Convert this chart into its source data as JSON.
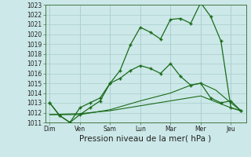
{
  "xlabel": "Pression niveau de la mer( hPa )",
  "days": [
    "Dim",
    "Ven",
    "Sam",
    "Lun",
    "Mar",
    "Mer",
    "Jeu"
  ],
  "day_x": [
    0,
    1,
    2,
    3,
    4,
    5,
    6
  ],
  "line1_x": [
    0,
    0.33,
    0.67,
    1.0,
    1.33,
    1.67,
    2.0,
    2.33,
    2.67,
    3.0,
    3.33,
    3.67,
    4.0,
    4.33,
    4.67,
    5.0,
    5.33,
    5.67,
    6.0,
    6.33
  ],
  "line1_y": [
    1013.0,
    1011.7,
    1011.0,
    1011.8,
    1012.5,
    1013.2,
    1015.0,
    1016.3,
    1018.9,
    1020.7,
    1020.2,
    1019.5,
    1021.5,
    1021.6,
    1021.1,
    1023.2,
    1021.8,
    1019.3,
    1012.5,
    1012.2
  ],
  "line2_x": [
    0,
    0.33,
    0.67,
    1.0,
    1.33,
    1.67,
    2.0,
    2.33,
    2.67,
    3.0,
    3.33,
    3.67,
    4.0,
    4.33,
    4.67,
    5.0,
    5.33,
    5.67,
    6.0,
    6.33
  ],
  "line2_y": [
    1013.0,
    1011.7,
    1011.0,
    1012.5,
    1013.0,
    1013.5,
    1015.0,
    1015.5,
    1016.3,
    1016.8,
    1016.5,
    1016.0,
    1017.0,
    1015.7,
    1014.8,
    1015.0,
    1013.5,
    1013.0,
    1013.2,
    1012.2
  ],
  "line3_x": [
    0,
    1.0,
    2.0,
    3.0,
    4.0,
    4.67,
    5.0,
    5.5,
    6.0,
    6.33
  ],
  "line3_y": [
    1011.8,
    1011.8,
    1012.3,
    1013.2,
    1014.0,
    1014.8,
    1015.0,
    1014.3,
    1013.0,
    1012.2
  ],
  "line4_x": [
    0,
    1.0,
    2.0,
    3.0,
    4.0,
    5.0,
    6.0,
    6.33
  ],
  "line4_y": [
    1011.8,
    1011.9,
    1012.2,
    1012.7,
    1013.2,
    1013.7,
    1012.5,
    1012.2
  ],
  "ylim": [
    1011,
    1023
  ],
  "xlim": [
    -0.15,
    6.5
  ],
  "yticks": [
    1011,
    1012,
    1013,
    1014,
    1015,
    1016,
    1017,
    1018,
    1019,
    1020,
    1021,
    1022,
    1023
  ],
  "line_color": "#1a6b1a",
  "bg_color": "#cce8e8",
  "grid_color": "#aacece",
  "tick_fontsize": 5.5,
  "xlabel_fontsize": 7.5
}
